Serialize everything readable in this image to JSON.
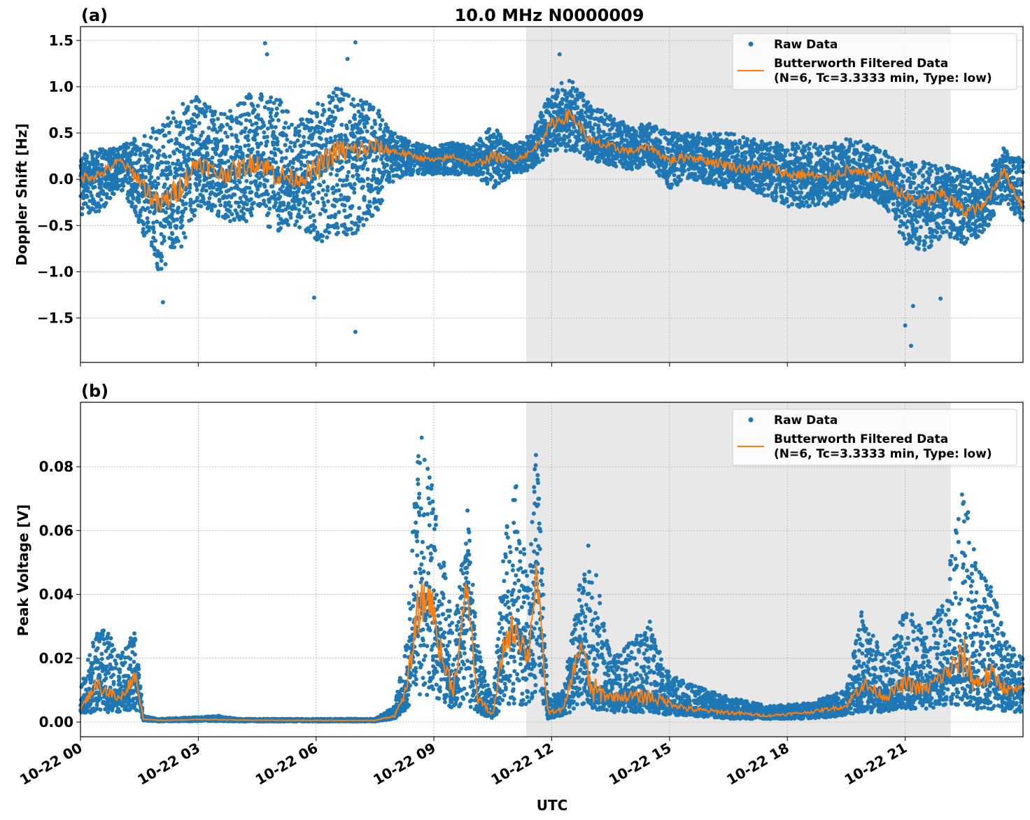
{
  "title": "10.0 MHz N0000009",
  "chart_data": [
    {
      "type": "scatter+line",
      "panel_label": "(a)",
      "ylabel": "Doppler Shift [Hz]",
      "xlabel": "",
      "x_unit": "hours UTC on 10-22",
      "xlim": [
        0,
        24
      ],
      "ylim": [
        -1.98,
        1.65
      ],
      "grid": true,
      "legend_position": "top-right",
      "x_ticks": [
        0,
        3,
        6,
        9,
        12,
        15,
        18,
        21
      ],
      "x_tick_labels": [
        "10-22 00",
        "10-22 03",
        "10-22 06",
        "10-22 09",
        "10-22 12",
        "10-22 15",
        "10-22 18",
        "10-22 21"
      ],
      "y_ticks": [
        1.5,
        1.0,
        0.5,
        0.0,
        -0.5,
        -1.0,
        -1.5
      ],
      "y_tick_labels": [
        "1.5",
        "1.0",
        "0.5",
        "0.0",
        "−0.5",
        "−1.0",
        "−1.5"
      ],
      "shaded_interval_hours": [
        11.35,
        22.16
      ],
      "legend": [
        "Raw Data",
        "Butterworth Filtered Data",
        "(N=6, Tc=3.3333 min, Type: low)"
      ],
      "series_colors": {
        "raw": "#1f77b4",
        "filtered": "#ff7f0e",
        "shade": "#e8e8e8"
      },
      "series": [
        {
          "name": "Butterworth Filtered Data (N=6, Tc=3.3333 min, Type: low)",
          "role": "filtered",
          "x": [
            0,
            0.5,
            1,
            1.5,
            2,
            2.5,
            3,
            3.5,
            4,
            4.5,
            5,
            5.5,
            6,
            6.5,
            7,
            7.5,
            8,
            8.5,
            9,
            9.5,
            10,
            10.5,
            11,
            11.5,
            12,
            12.5,
            13,
            13.5,
            14,
            14.5,
            15,
            15.5,
            16,
            16.5,
            17,
            17.5,
            18,
            18.5,
            19,
            19.5,
            20,
            20.5,
            21,
            21.5,
            22,
            22.5,
            23,
            23.5,
            24
          ],
          "y": [
            0.02,
            0.05,
            0.2,
            0.0,
            -0.3,
            -0.1,
            0.2,
            0.05,
            0.1,
            0.2,
            0.05,
            0.0,
            0.1,
            0.3,
            0.3,
            0.35,
            0.3,
            0.25,
            0.2,
            0.25,
            0.15,
            0.25,
            0.2,
            0.3,
            0.6,
            0.7,
            0.4,
            0.35,
            0.3,
            0.35,
            0.2,
            0.25,
            0.2,
            0.15,
            0.1,
            0.15,
            0.05,
            0.05,
            0.0,
            0.1,
            0.05,
            0.0,
            -0.2,
            -0.25,
            -0.15,
            -0.35,
            -0.3,
            0.1,
            -0.3
          ]
        },
        {
          "name": "Raw Data",
          "role": "raw",
          "x": [
            0,
            0.5,
            1,
            1.5,
            2,
            2.5,
            3,
            3.5,
            4,
            4.5,
            5,
            5.5,
            6,
            6.5,
            7,
            7.5,
            8,
            8.5,
            9,
            9.5,
            10,
            10.5,
            11,
            11.5,
            12,
            12.5,
            13,
            13.5,
            14,
            14.5,
            15,
            15.5,
            16,
            16.5,
            17,
            17.5,
            18,
            18.5,
            19,
            19.5,
            20,
            20.5,
            21,
            21.5,
            22,
            22.5,
            23,
            23.5,
            24
          ],
          "y_min": [
            -0.4,
            -0.35,
            -0.1,
            -0.5,
            -1.0,
            -0.8,
            -0.3,
            -0.4,
            -0.5,
            -0.4,
            -0.6,
            -0.5,
            -0.7,
            -0.6,
            -0.6,
            -0.4,
            0.0,
            0.05,
            0.05,
            0.05,
            0.05,
            -0.1,
            0.05,
            0.1,
            0.3,
            0.3,
            0.2,
            0.15,
            0.1,
            0.15,
            -0.1,
            0.0,
            -0.05,
            -0.1,
            -0.1,
            -0.2,
            -0.3,
            -0.3,
            -0.3,
            -0.2,
            -0.2,
            -0.3,
            -0.7,
            -0.8,
            -0.6,
            -0.7,
            -0.6,
            -0.2,
            -0.5
          ],
          "y_max": [
            0.25,
            0.35,
            0.35,
            0.5,
            0.6,
            0.8,
            0.9,
            0.7,
            0.8,
            1.0,
            0.9,
            0.6,
            0.8,
            1.0,
            0.9,
            0.8,
            0.5,
            0.4,
            0.35,
            0.4,
            0.35,
            0.6,
            0.35,
            0.5,
            1.0,
            1.1,
            0.8,
            0.7,
            0.6,
            0.6,
            0.5,
            0.5,
            0.5,
            0.5,
            0.45,
            0.4,
            0.4,
            0.4,
            0.35,
            0.45,
            0.4,
            0.3,
            0.2,
            0.2,
            0.15,
            0.1,
            0.0,
            0.35,
            0.2
          ],
          "outliers": [
            [
              2.1,
              -1.33
            ],
            [
              4.7,
              1.47
            ],
            [
              7.0,
              1.48
            ],
            [
              7.0,
              -1.65
            ],
            [
              6.8,
              1.3
            ],
            [
              5.95,
              -1.28
            ],
            [
              4.75,
              1.35
            ],
            [
              12.2,
              1.35
            ],
            [
              21.0,
              -1.58
            ],
            [
              21.15,
              -1.8
            ],
            [
              21.9,
              -1.29
            ],
            [
              21.2,
              -1.37
            ]
          ]
        }
      ]
    },
    {
      "type": "scatter+line",
      "panel_label": "(b)",
      "ylabel": "Peak Voltage [V]",
      "xlabel": "UTC",
      "x_unit": "hours UTC on 10-22",
      "xlim": [
        0,
        24
      ],
      "ylim": [
        -0.0046,
        0.1002
      ],
      "grid": true,
      "legend_position": "top-right",
      "x_ticks": [
        0,
        3,
        6,
        9,
        12,
        15,
        18,
        21
      ],
      "x_tick_labels": [
        "10-22 00",
        "10-22 03",
        "10-22 06",
        "10-22 09",
        "10-22 12",
        "10-22 15",
        "10-22 18",
        "10-22 21"
      ],
      "y_ticks": [
        0.0,
        0.02,
        0.04,
        0.06,
        0.08
      ],
      "y_tick_labels": [
        "0.00",
        "0.02",
        "0.04",
        "0.06",
        "0.08"
      ],
      "shaded_interval_hours": [
        11.35,
        22.16
      ],
      "legend": [
        "Raw Data",
        "Butterworth Filtered Data",
        "(N=6, Tc=3.3333 min, Type: low)"
      ],
      "series_colors": {
        "raw": "#1f77b4",
        "filtered": "#ff7f0e",
        "shade": "#e8e8e8"
      },
      "series": [
        {
          "name": "Butterworth Filtered Data (N=6, Tc=3.3333 min, Type: low)",
          "role": "filtered",
          "x": [
            0,
            0.4,
            0.75,
            1.0,
            1.4,
            1.6,
            2.0,
            3.0,
            3.5,
            4.0,
            6.0,
            7.5,
            8.0,
            8.3,
            8.6,
            8.9,
            9.2,
            9.5,
            9.85,
            10.1,
            10.5,
            10.8,
            11.1,
            11.4,
            11.6,
            11.9,
            12.3,
            12.75,
            13.0,
            13.5,
            14.0,
            14.5,
            15.0,
            15.5,
            16.5,
            17.5,
            18.5,
            19.5,
            19.9,
            20.5,
            21.0,
            21.5,
            22.0,
            22.5,
            22.8,
            23.2,
            23.6,
            24.0
          ],
          "y": [
            0.004,
            0.012,
            0.009,
            0.007,
            0.015,
            0.001,
            0.0005,
            0.0008,
            0.0008,
            0.0006,
            0.0005,
            0.0005,
            0.002,
            0.01,
            0.035,
            0.04,
            0.02,
            0.01,
            0.043,
            0.008,
            0.002,
            0.025,
            0.03,
            0.02,
            0.048,
            0.003,
            0.004,
            0.025,
            0.01,
            0.008,
            0.008,
            0.008,
            0.006,
            0.004,
            0.003,
            0.002,
            0.003,
            0.005,
            0.012,
            0.008,
            0.012,
            0.01,
            0.015,
            0.02,
            0.012,
            0.015,
            0.01,
            0.01
          ]
        },
        {
          "name": "Raw Data",
          "role": "raw",
          "x": [
            0,
            0.4,
            0.75,
            1.0,
            1.4,
            1.6,
            2.0,
            3.0,
            3.5,
            4.0,
            6.0,
            7.5,
            8.0,
            8.3,
            8.6,
            8.9,
            9.2,
            9.5,
            9.85,
            10.1,
            10.5,
            10.8,
            11.1,
            11.4,
            11.6,
            11.9,
            12.3,
            12.75,
            13.0,
            13.5,
            14.0,
            14.5,
            15.0,
            15.5,
            16.5,
            17.5,
            18.5,
            19.5,
            19.9,
            20.5,
            21.0,
            21.5,
            22.0,
            22.5,
            22.8,
            23.2,
            23.6,
            24.0
          ],
          "y_min": [
            0.002,
            0.003,
            0.003,
            0.003,
            0.004,
            0.0005,
            0.0002,
            0.0003,
            0.0003,
            0.0002,
            0.0002,
            0.0002,
            0.001,
            0.004,
            0.008,
            0.008,
            0.006,
            0.004,
            0.005,
            0.003,
            0.001,
            0.005,
            0.005,
            0.005,
            0.01,
            0.001,
            0.002,
            0.005,
            0.004,
            0.003,
            0.003,
            0.003,
            0.002,
            0.002,
            0.001,
            0.001,
            0.001,
            0.002,
            0.003,
            0.003,
            0.004,
            0.004,
            0.005,
            0.005,
            0.004,
            0.004,
            0.003,
            0.003
          ],
          "y_max": [
            0.01,
            0.03,
            0.028,
            0.02,
            0.03,
            0.002,
            0.001,
            0.0015,
            0.002,
            0.001,
            0.001,
            0.001,
            0.005,
            0.025,
            0.095,
            0.08,
            0.055,
            0.03,
            0.067,
            0.025,
            0.006,
            0.058,
            0.076,
            0.045,
            0.091,
            0.008,
            0.01,
            0.048,
            0.059,
            0.02,
            0.025,
            0.033,
            0.015,
            0.012,
            0.008,
            0.005,
            0.006,
            0.01,
            0.035,
            0.02,
            0.036,
            0.03,
            0.039,
            0.08,
            0.049,
            0.043,
            0.025,
            0.02
          ],
          "outliers": []
        }
      ]
    }
  ]
}
